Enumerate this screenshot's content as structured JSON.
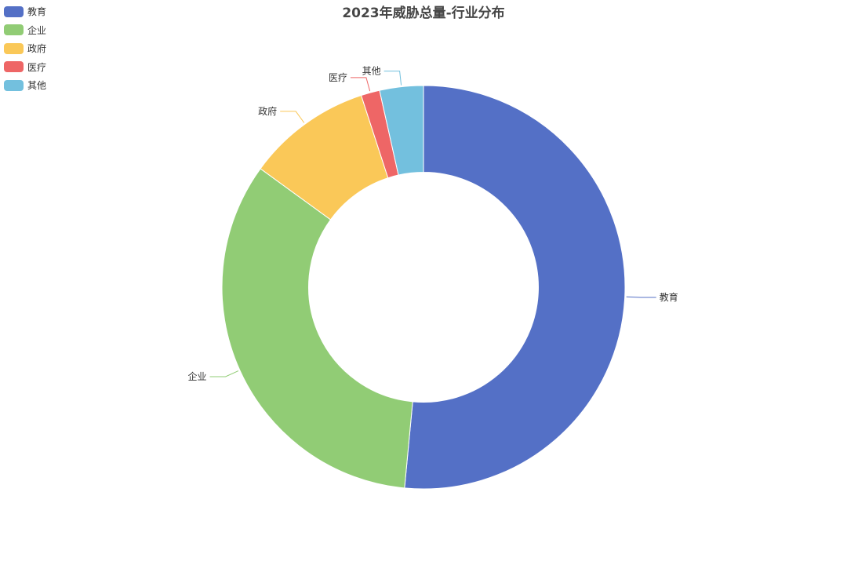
{
  "chart_data": {
    "type": "pie",
    "title": "2023年威胁总量-行业分布",
    "categories": [
      "教育",
      "企业",
      "政府",
      "医疗",
      "其他"
    ],
    "values": [
      51.5,
      33.5,
      10.0,
      1.5,
      3.5
    ],
    "colors": [
      "#5470c6",
      "#91cc75",
      "#fac858",
      "#ee6666",
      "#73c0de"
    ],
    "inner_radius_ratio": 0.57,
    "legend_position": "top-left",
    "grid": false
  }
}
